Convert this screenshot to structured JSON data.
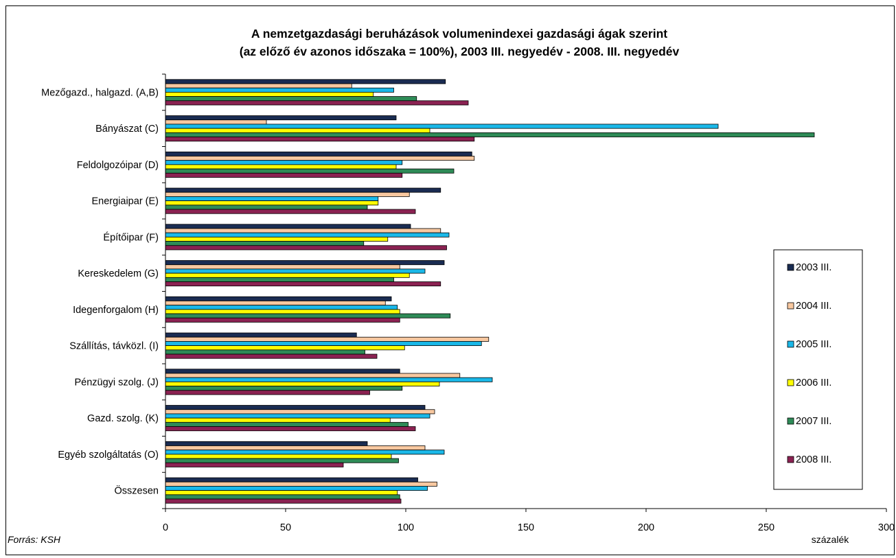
{
  "chart_data": {
    "type": "bar",
    "orientation": "horizontal",
    "title": "A nemzetgazdasági beruházások volumenindexei gazdasági ágak szerint",
    "subtitle": "(az előző év azonos időszaka = 100%), 2003 III. negyedév - 2008. III. negyedév",
    "categories": [
      "Mezőgazd., halgazd. (A,B)",
      "Bányászat (C)",
      "Feldolgozóipar (D)",
      "Energiaipar (E)",
      "Építőipar (F)",
      "Kereskedelem (G)",
      "Idegenforgalom (H)",
      "Szállítás, távközl. (I)",
      "Pénzügyi szolg. (J)",
      "Gazd. szolg. (K)",
      "Egyéb szolgáltatás (O)",
      "Összesen"
    ],
    "series": [
      {
        "name": "2003 III.",
        "color": "#1a2c52",
        "values": [
          116.5,
          96,
          127.5,
          114.5,
          102,
          116,
          94,
          79.5,
          97.5,
          108,
          84,
          105
        ]
      },
      {
        "name": "2004 III.",
        "color": "#f8c8a0",
        "values": [
          77.5,
          42,
          128.5,
          101.5,
          114.5,
          97.5,
          91.5,
          134.5,
          122.5,
          112,
          108,
          113
        ]
      },
      {
        "name": "2005 III.",
        "color": "#1ab8e8",
        "values": [
          95,
          230,
          98.5,
          88.5,
          118,
          108,
          96.5,
          131.5,
          136,
          110,
          116,
          109
        ]
      },
      {
        "name": "2006 III.",
        "color": "#ffff00",
        "values": [
          86.5,
          110,
          96,
          88.5,
          92.5,
          101.5,
          97.5,
          99.5,
          114,
          93.5,
          94,
          96.5
        ]
      },
      {
        "name": "2007 III.",
        "color": "#2e8b57",
        "values": [
          104.5,
          270,
          120,
          84,
          82.5,
          95,
          118.5,
          83,
          98.5,
          101,
          97,
          97.5
        ]
      },
      {
        "name": "2008 III.",
        "color": "#8b2252",
        "values": [
          126,
          128.5,
          98.5,
          104,
          117,
          114.5,
          97.5,
          88,
          85,
          104,
          74,
          98
        ]
      }
    ],
    "xlim": [
      0,
      300
    ],
    "xticks": [
      "0",
      "50",
      "100",
      "150",
      "200",
      "250",
      "300"
    ],
    "xlabel": "százalék",
    "grid": false,
    "legend_position": "right"
  },
  "source_note": "Forrás: KSH"
}
